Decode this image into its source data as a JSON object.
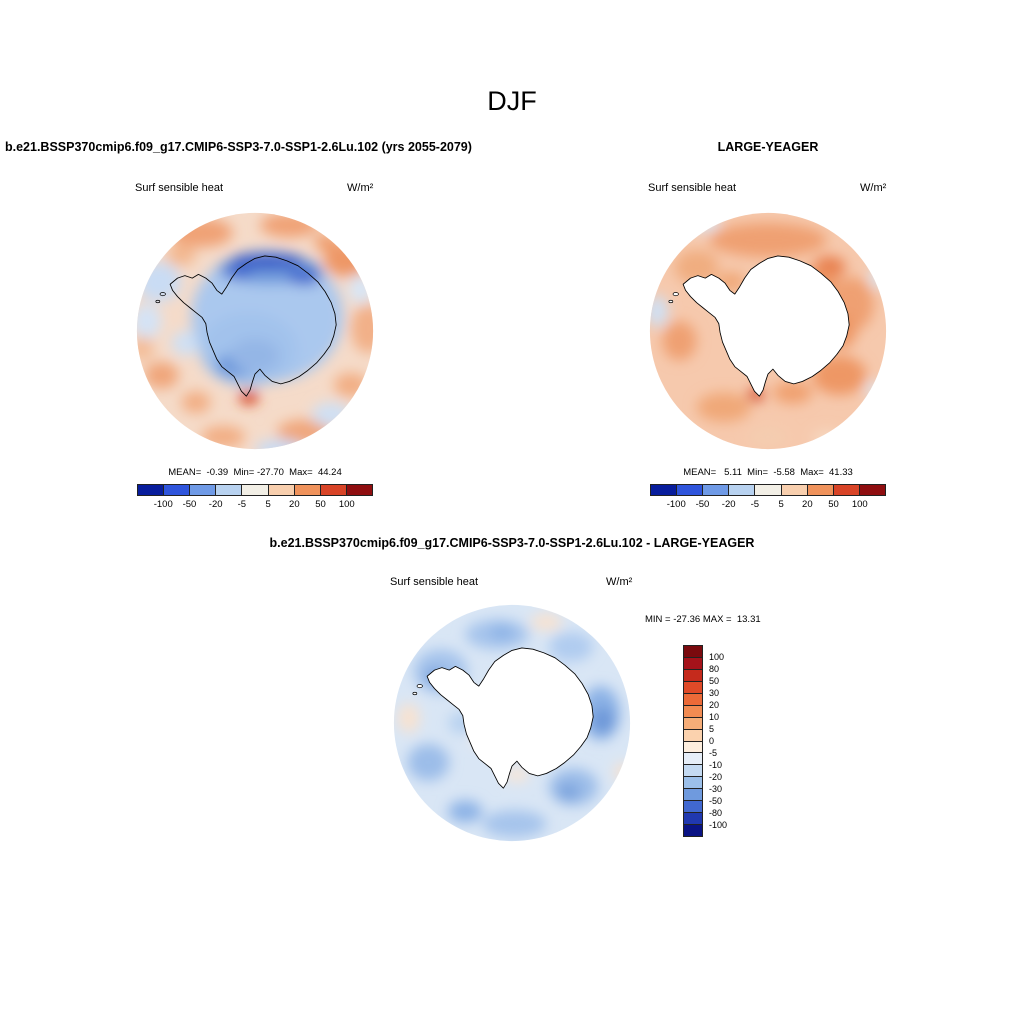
{
  "page": {
    "title": "DJF"
  },
  "panels": {
    "model": {
      "header": "b.e21.BSSP370cmip6.f09_g17.CMIP6-SSP3-7.0-SSP1-2.6Lu.102 (yrs 2055-2079)",
      "var_label": "Surf sensible heat",
      "units": "W/m²",
      "stats": "MEAN=  -0.39  Min= -27.70  Max=  44.24"
    },
    "obs": {
      "header": "LARGE-YEAGER",
      "var_label": "Surf sensible heat",
      "units": "W/m²",
      "stats": "MEAN=   5.11  Min=  -5.58  Max=  41.33"
    },
    "diff": {
      "header": "b.e21.BSSP370cmip6.f09_g17.CMIP6-SSP3-7.0-SSP1-2.6Lu.102 - LARGE-YEAGER",
      "var_label": "Surf sensible heat",
      "units": "W/m²",
      "minmax": "MIN = -27.36 MAX =  13.31"
    }
  },
  "colorbar_h": {
    "ticks": [
      "-100",
      "-50",
      "-20",
      "-5",
      "5",
      "20",
      "50",
      "100"
    ],
    "colors": [
      "#081d9c",
      "#2f55dc",
      "#6f9ae6",
      "#b8d2f0",
      "#f2efe6",
      "#f8cfae",
      "#f0935c",
      "#d84427",
      "#8f0e10"
    ]
  },
  "colorbar_v": {
    "labels": [
      "100",
      "80",
      "50",
      "30",
      "20",
      "10",
      "5",
      "0",
      "-5",
      "-10",
      "-20",
      "-30",
      "-50",
      "-80",
      "-100"
    ],
    "colors": [
      "#7a0a0e",
      "#a5121a",
      "#c52a1c",
      "#e04a28",
      "#ec6a38",
      "#f28b52",
      "#f6ad78",
      "#fbd2ae",
      "#fdeede",
      "#e6eef8",
      "#c4daf2",
      "#9cc0ea",
      "#6f9ade",
      "#4168d0",
      "#2038b0",
      "#0a1384"
    ]
  },
  "chart_data": [
    {
      "type": "heatmap",
      "title": "DJF",
      "panel": "b.e21.BSSP370cmip6.f09_g17.CMIP6-SSP3-7.0-SSP1-2.6Lu.102 (yrs 2055-2079)",
      "variable": "Surf sensible heat",
      "units": "W/m²",
      "projection": "south polar stereographic (Antarctica)",
      "stats": {
        "mean": -0.39,
        "min": -27.7,
        "max": 44.24
      },
      "levels": [
        -100,
        -50,
        -20,
        -5,
        5,
        20,
        50,
        100
      ],
      "legend_position": "horizontal colorbar below map",
      "field_summary": "mostly negative (blue) over Antarctic continent with dark blue coastal band, weak positive (orange) patches over surrounding ocean, strong positive red spot near bottom coast"
    },
    {
      "type": "heatmap",
      "title": "DJF",
      "panel": "LARGE-YEAGER",
      "variable": "Surf sensible heat",
      "units": "W/m²",
      "projection": "south polar stereographic (Antarctica)",
      "stats": {
        "mean": 5.11,
        "min": -5.58,
        "max": 41.33
      },
      "levels": [
        -100,
        -50,
        -20,
        -5,
        5,
        20,
        50,
        100
      ],
      "legend_position": "horizontal colorbar below map",
      "field_summary": "weak positive (light orange) nearly everywhere over ocean, continent masked white, strong positive red spot near bottom coast"
    },
    {
      "type": "heatmap",
      "title": "b.e21.BSSP370cmip6.f09_g17.CMIP6-SSP3-7.0-SSP1-2.6Lu.102 - LARGE-YEAGER",
      "panel": "difference",
      "variable": "Surf sensible heat",
      "units": "W/m²",
      "projection": "south polar stereographic (Antarctica)",
      "stats": {
        "min": -27.36,
        "max": 13.31
      },
      "levels": [
        -100,
        -80,
        -50,
        -30,
        -20,
        -10,
        -5,
        0,
        5,
        10,
        20,
        30,
        50,
        80,
        100
      ],
      "legend_position": "vertical colorbar right of map",
      "field_summary": "mostly weak negative (light blue) differences over ocean with scattered moderate blue blobs and a few pale positive patches, continent masked white"
    }
  ]
}
